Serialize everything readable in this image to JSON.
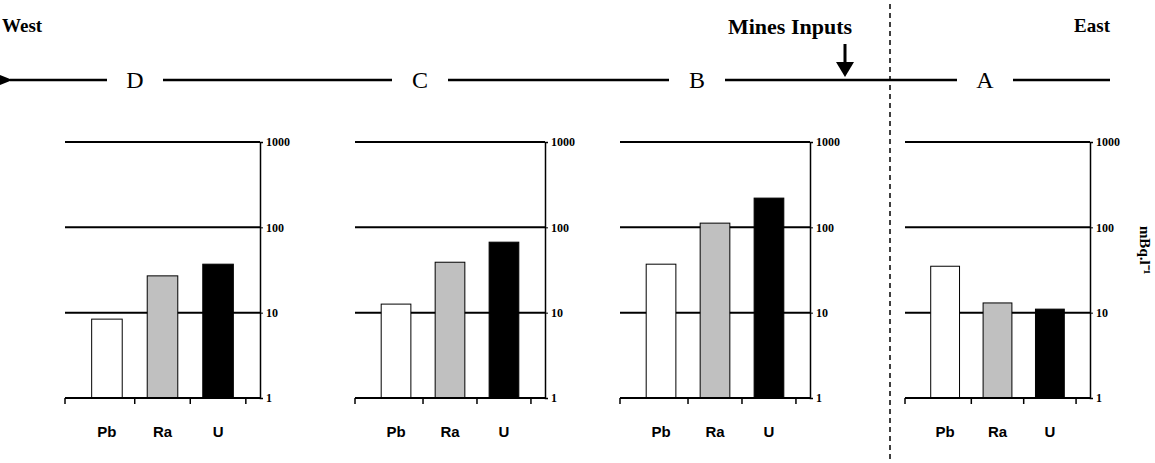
{
  "chart_data": [
    {
      "type": "bar",
      "title": "D",
      "annotations": [
        "West"
      ],
      "categories": [
        "Pb",
        "Ra",
        "U"
      ],
      "values": [
        8.4,
        27,
        37
      ],
      "colors": [
        "#ffffff",
        "#c0c0c0",
        "#000000"
      ],
      "ylim": [
        1,
        1000
      ],
      "yticks": [
        1,
        10,
        100,
        1000
      ],
      "log": "y",
      "grid": true
    },
    {
      "type": "bar",
      "title": "C",
      "categories": [
        "Pb",
        "Ra",
        "U"
      ],
      "values": [
        12.6,
        39,
        67
      ],
      "colors": [
        "#ffffff",
        "#c0c0c0",
        "#000000"
      ],
      "ylim": [
        1,
        1000
      ],
      "yticks": [
        1,
        10,
        100,
        1000
      ],
      "log": "y",
      "grid": true
    },
    {
      "type": "bar",
      "title": "B",
      "annotations": [
        "Mines Inputs"
      ],
      "categories": [
        "Pb",
        "Ra",
        "U"
      ],
      "values": [
        37,
        112,
        220
      ],
      "colors": [
        "#ffffff",
        "#c0c0c0",
        "#000000"
      ],
      "ylim": [
        1,
        1000
      ],
      "yticks": [
        1,
        10,
        100,
        1000
      ],
      "log": "y",
      "grid": true
    },
    {
      "type": "bar",
      "title": "A",
      "annotations": [
        "East"
      ],
      "y_label": "mBq.l⁻¹",
      "categories": [
        "Pb",
        "Ra",
        "U"
      ],
      "values": [
        35,
        13,
        11
      ],
      "colors": [
        "#ffffff",
        "#c0c0c0",
        "#000000"
      ],
      "ylim": [
        1,
        1000
      ],
      "yticks": [
        1,
        10,
        100,
        1000
      ],
      "log": "y",
      "grid": true
    }
  ]
}
